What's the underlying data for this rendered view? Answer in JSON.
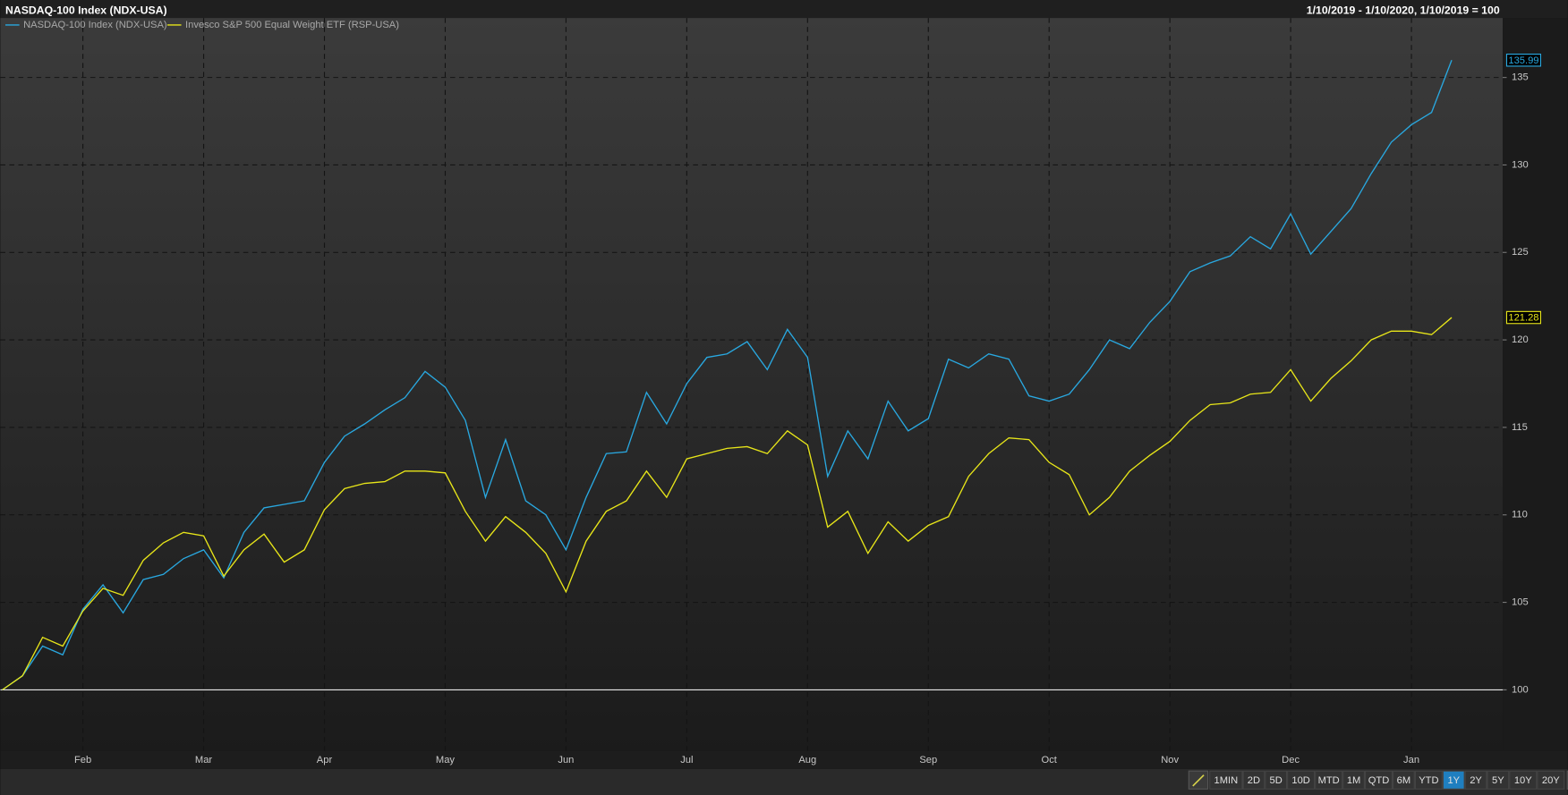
{
  "chart_data": {
    "type": "line",
    "title": "NASDAQ-100 Index (NDX-USA)",
    "subtitle": "1/10/2019 - 1/10/2020, 1/10/2019 = 100",
    "categories": [
      null,
      null,
      null,
      null,
      "Feb",
      null,
      null,
      null,
      null,
      null,
      "Mar",
      null,
      null,
      null,
      null,
      null,
      "Apr",
      null,
      null,
      null,
      null,
      null,
      "May",
      null,
      null,
      null,
      null,
      null,
      "Jun",
      null,
      null,
      null,
      null,
      null,
      "Jul",
      null,
      null,
      null,
      null,
      null,
      "Aug",
      null,
      null,
      null,
      null,
      null,
      "Sep",
      null,
      null,
      null,
      null,
      null,
      "Oct",
      null,
      null,
      null,
      null,
      null,
      "Nov",
      null,
      null,
      null,
      null,
      null,
      "Dec",
      null,
      null,
      null,
      null,
      null,
      "Jan",
      null,
      null
    ],
    "series": [
      {
        "name": "NASDAQ-100 Index (NDX-USA)",
        "color": "#29a8e0",
        "values": [
          100,
          100.8,
          102.5,
          102,
          104.6,
          106,
          104.4,
          106.3,
          106.6,
          107.5,
          108,
          106.4,
          109,
          110.4,
          110.6,
          110.8,
          113,
          114.5,
          115.2,
          116,
          116.7,
          118.2,
          117.3,
          115.4,
          111,
          114.3,
          110.8,
          110,
          108,
          111,
          113.5,
          113.6,
          117,
          115.2,
          117.5,
          119,
          119.2,
          119.9,
          118.3,
          120.6,
          119,
          112.2,
          114.8,
          113.2,
          116.5,
          114.8,
          115.5,
          118.9,
          118.4,
          119.2,
          118.9,
          116.8,
          116.5,
          116.9,
          118.3,
          120,
          119.5,
          121,
          122.2,
          123.9,
          124.4,
          124.8,
          125.9,
          125.2,
          127.2,
          124.9,
          126.2,
          127.5,
          129.5,
          131.3,
          132.3,
          133,
          135.99
        ]
      },
      {
        "name": "Invesco S&P 500 Equal Weight ETF (RSP-USA)",
        "color": "#e8e619",
        "values": [
          100,
          100.8,
          103,
          102.5,
          104.5,
          105.8,
          105.4,
          107.4,
          108.4,
          109,
          108.8,
          106.5,
          108,
          108.9,
          107.3,
          108,
          110.3,
          111.5,
          111.8,
          111.9,
          112.5,
          112.5,
          112.4,
          110.2,
          108.5,
          109.9,
          109,
          107.8,
          105.6,
          108.5,
          110.2,
          110.8,
          112.5,
          111,
          113.2,
          113.5,
          113.8,
          113.9,
          113.5,
          114.8,
          114,
          109.3,
          110.2,
          107.8,
          109.6,
          108.5,
          109.4,
          109.9,
          112.2,
          113.5,
          114.4,
          114.3,
          113,
          112.3,
          110,
          111,
          112.5,
          113.4,
          114.2,
          115.4,
          116.3,
          116.4,
          116.9,
          117,
          118.3,
          116.5,
          117.8,
          118.8,
          120,
          120.5,
          120.5,
          120.3,
          121.28
        ]
      }
    ],
    "ylim": [
      96.5,
      138.4
    ],
    "yticks": [
      100,
      105,
      110,
      115,
      120,
      125,
      130,
      135
    ],
    "baseline": 100,
    "grid": true
  },
  "toolbar": {
    "buttons": [
      "1MIN",
      "2D",
      "5D",
      "10D",
      "MTD",
      "1M",
      "QTD",
      "6M",
      "YTD",
      "1Y",
      "2Y",
      "5Y",
      "10Y",
      "20Y"
    ],
    "active": "1Y"
  }
}
